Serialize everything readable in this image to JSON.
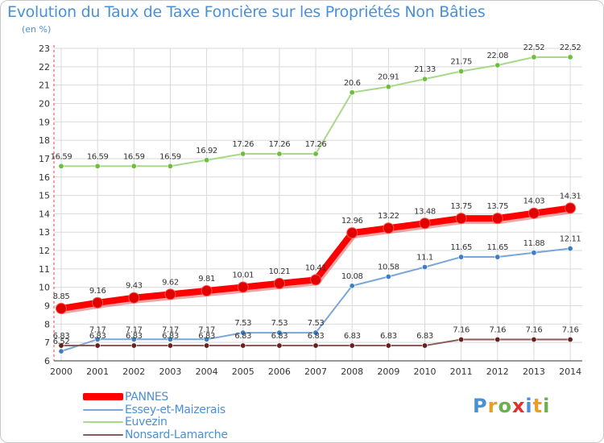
{
  "header": {
    "title": "Evolution du Taux de Taxe Foncière sur les Propriétés Non Bâties",
    "unit": "(en %)"
  },
  "brand": {
    "letters": [
      "P",
      "r",
      "o",
      "x",
      "i",
      "t",
      "i"
    ],
    "colors": [
      "#4a90d9",
      "#e8a020",
      "#6ab04c",
      "#e03030",
      "#4a90d9",
      "#e8a020",
      "#6ab04c"
    ]
  },
  "chart_data": {
    "type": "line",
    "title": "Evolution du Taux de Taxe Foncière sur les Propriétés Non Bâties",
    "ylabel": "(en %)",
    "xlabel": "",
    "x": [
      "2000",
      "2001",
      "2002",
      "2003",
      "2004",
      "2005",
      "2006",
      "2007",
      "2008",
      "2009",
      "2010",
      "2011",
      "2012",
      "2013",
      "2014"
    ],
    "ylim": [
      6,
      23
    ],
    "yticks": [
      6,
      7,
      8,
      9,
      10,
      11,
      12,
      13,
      14,
      15,
      16,
      17,
      18,
      19,
      20,
      21,
      22,
      23
    ],
    "grid": true,
    "legend": "bottom-left",
    "series": [
      {
        "name": "PANNES",
        "color": "#ff0000",
        "marker_color": "#e00000",
        "emphasis": true,
        "values": [
          8.85,
          9.16,
          9.43,
          9.62,
          9.81,
          10.01,
          10.21,
          10.41,
          12.96,
          13.22,
          13.48,
          13.75,
          13.75,
          14.03,
          14.31
        ],
        "labels": [
          "8.85",
          "9.16",
          "9.43",
          "9.62",
          "9.81",
          "10.01",
          "10.21",
          "10.41",
          "12.96",
          "13.22",
          "13.48",
          "13.75",
          "13.75",
          "14.03",
          "14.31"
        ]
      },
      {
        "name": "Essey-et-Maizerais",
        "color": "#7aa7d8",
        "marker_color": "#3b7fc4",
        "emphasis": false,
        "values": [
          6.52,
          7.17,
          7.17,
          7.17,
          7.17,
          7.53,
          7.53,
          7.53,
          10.08,
          10.58,
          11.1,
          11.65,
          11.65,
          11.88,
          12.11
        ],
        "labels": [
          "6.52",
          "7.17",
          "7.17",
          "7.17",
          "7.17",
          "7.53",
          "7.53",
          "7.53",
          "10.08",
          "10.58",
          "11.1",
          "11.65",
          "11.65",
          "11.88",
          "12.11"
        ]
      },
      {
        "name": "Euvezin",
        "color": "#a8d88a",
        "marker_color": "#6cbf3c",
        "emphasis": false,
        "values": [
          16.59,
          16.59,
          16.59,
          16.59,
          16.92,
          17.26,
          17.26,
          17.26,
          20.6,
          20.91,
          21.33,
          21.75,
          22.08,
          22.52,
          22.52
        ],
        "labels": [
          "16.59",
          "16.59",
          "16.59",
          "16.59",
          "16.92",
          "17.26",
          "17.26",
          "17.26",
          "20.6",
          "20.91",
          "21.33",
          "21.75",
          "22.08",
          "22.52",
          "22.52"
        ]
      },
      {
        "name": "Nonsard-Lamarche",
        "color": "#8b5a5a",
        "marker_color": "#6a1f1f",
        "emphasis": false,
        "values": [
          6.83,
          6.83,
          6.83,
          6.83,
          6.83,
          6.83,
          6.83,
          6.83,
          6.83,
          6.83,
          6.83,
          7.16,
          7.16,
          7.16,
          7.16
        ],
        "labels": [
          "6.83",
          "6.83",
          "6.83",
          "6.83",
          "6.83",
          "6.83",
          "6.83",
          "6.83",
          "6.83",
          "6.83",
          "6.83",
          "7.16",
          "7.16",
          "7.16",
          "7.16"
        ]
      }
    ]
  }
}
